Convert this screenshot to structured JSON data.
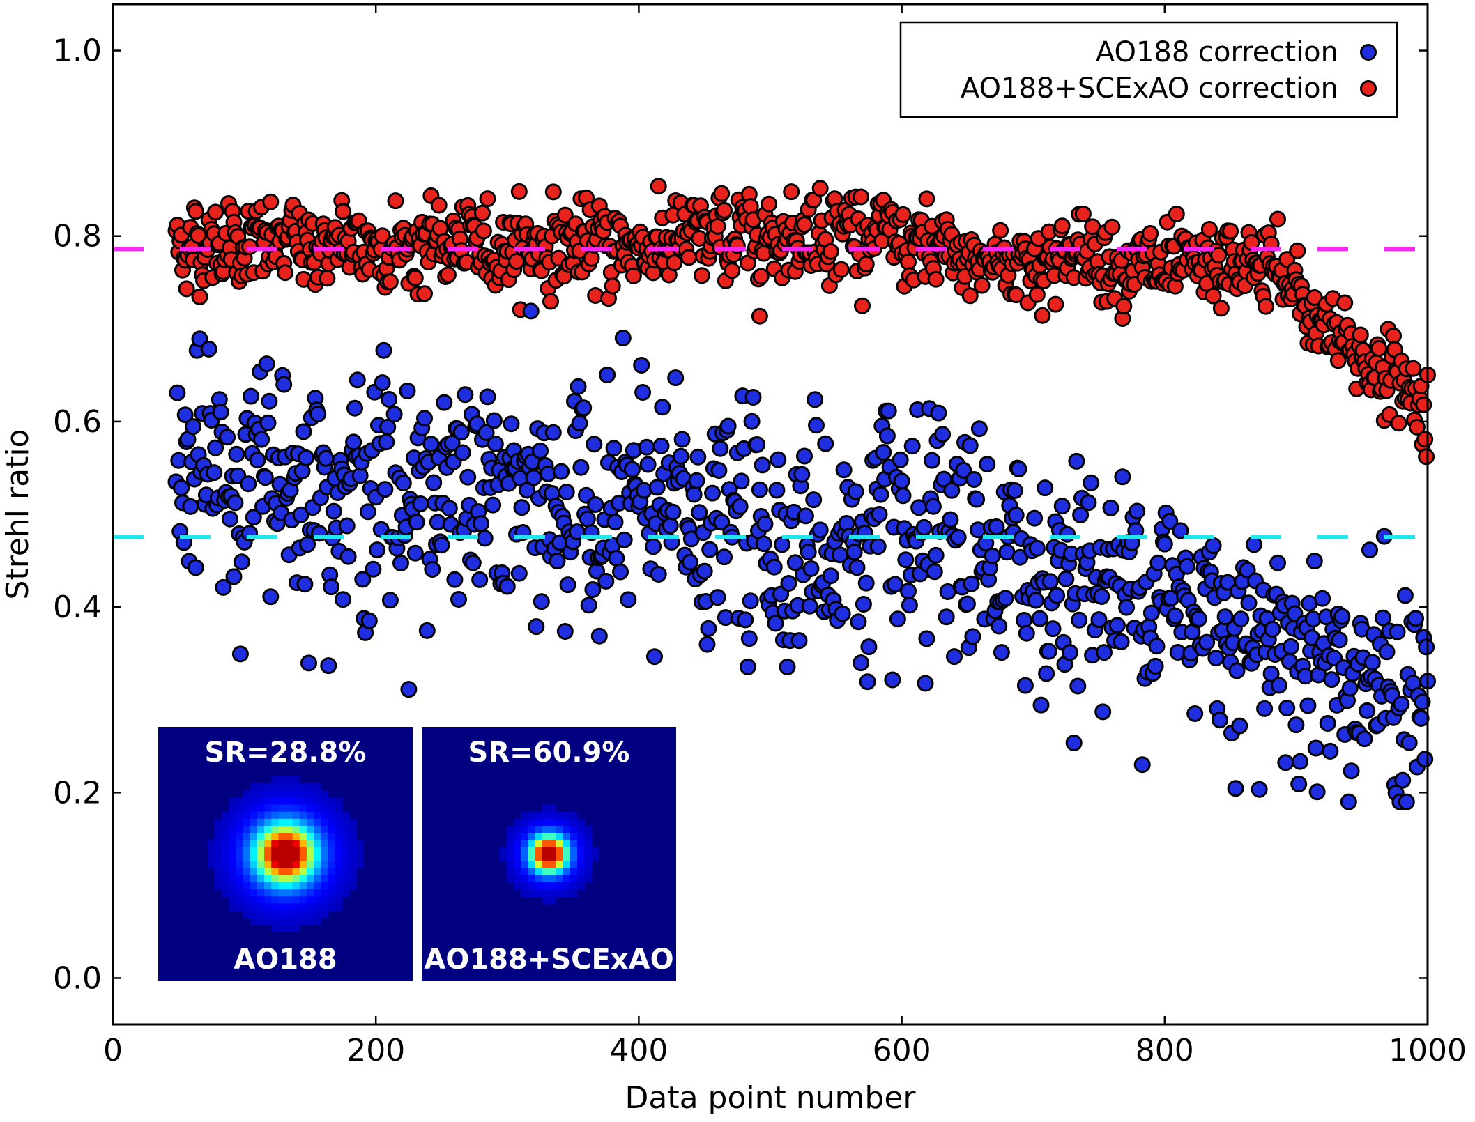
{
  "chart_data": {
    "type": "scatter",
    "xlabel": "Data point number",
    "ylabel": "Strehl ratio",
    "xlim": [
      0,
      1000
    ],
    "ylim": [
      -0.05,
      1.05
    ],
    "xticks": [
      0,
      200,
      400,
      600,
      800,
      1000
    ],
    "xtick_labels": [
      "0",
      "200",
      "400",
      "600",
      "800",
      "1000"
    ],
    "yticks": [
      0.0,
      0.2,
      0.4,
      0.6,
      0.8,
      1.0
    ],
    "ytick_labels": [
      "0.0",
      "0.2",
      "0.4",
      "0.6",
      "0.8",
      "1.0"
    ],
    "grid": false,
    "legend_position": "top-right",
    "x_start": 48,
    "x_end": 1000,
    "series": [
      {
        "name": "AO188 correction",
        "color": "#1f2fe0",
        "mean": 0.476,
        "trend": [
          [
            48,
            0.54
          ],
          [
            130,
            0.54
          ],
          [
            250,
            0.52
          ],
          [
            400,
            0.5
          ],
          [
            500,
            0.48
          ],
          [
            600,
            0.46
          ],
          [
            700,
            0.44
          ],
          [
            800,
            0.42
          ],
          [
            880,
            0.37
          ],
          [
            950,
            0.33
          ],
          [
            1000,
            0.3
          ]
        ],
        "spread": 0.1,
        "min": 0.19,
        "max": 0.73
      },
      {
        "name": "AO188+SCExAO correction",
        "color": "#e8221c",
        "mean": 0.786,
        "trend": [
          [
            48,
            0.79
          ],
          [
            200,
            0.79
          ],
          [
            400,
            0.79
          ],
          [
            500,
            0.8
          ],
          [
            560,
            0.81
          ],
          [
            650,
            0.77
          ],
          [
            750,
            0.78
          ],
          [
            800,
            0.76
          ],
          [
            880,
            0.77
          ],
          [
            920,
            0.7
          ],
          [
            1000,
            0.62
          ]
        ],
        "spread": 0.035,
        "min": 0.5,
        "max": 0.89
      }
    ],
    "reference_lines": [
      {
        "series": "AO188+SCExAO correction",
        "y": 0.786,
        "color": "#ff22ff",
        "style": "dashed"
      },
      {
        "series": "AO188 correction",
        "y": 0.476,
        "color": "#22e5ee",
        "style": "dashed"
      }
    ],
    "insets": [
      {
        "top_label": "SR=28.8%",
        "bottom_label": "AO188",
        "strehl": 0.288
      },
      {
        "top_label": "SR=60.9%",
        "bottom_label": "AO188+SCExAO",
        "strehl": 0.609
      }
    ]
  }
}
